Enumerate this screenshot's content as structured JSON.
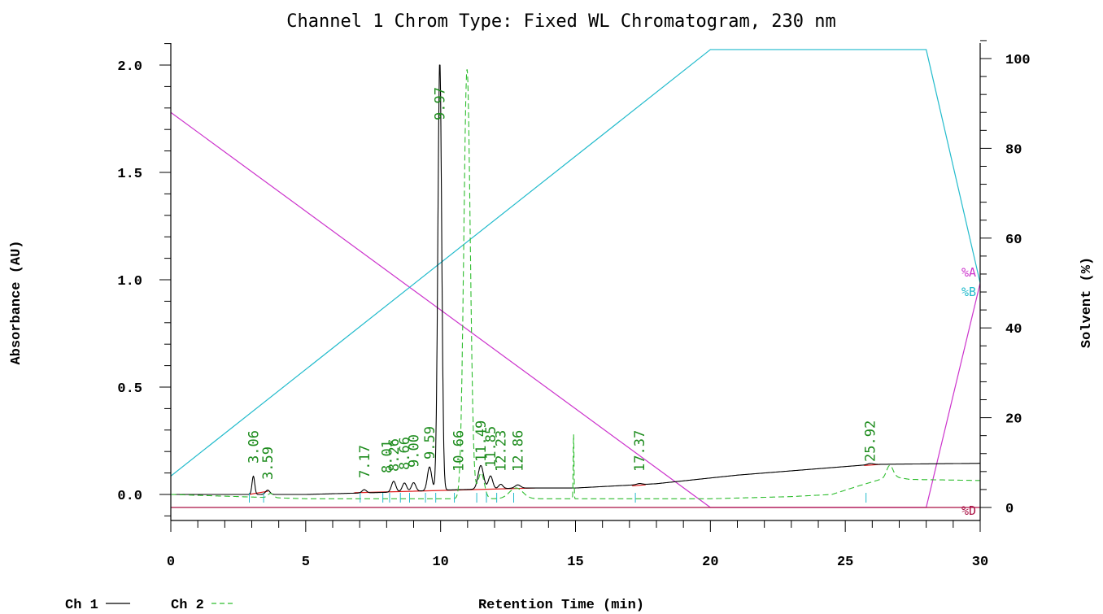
{
  "chart_data": {
    "type": "line",
    "title": "Channel 1 Chrom Type: Fixed WL Chromatogram, 230 nm",
    "xlabel": "Retention Time (min)",
    "ylabel": "Absorbance (AU)",
    "y2label": "Solvent (%)",
    "xlim": [
      0,
      30
    ],
    "ylim": [
      -0.12,
      2.1
    ],
    "y2lim": [
      0,
      100
    ],
    "x_ticks": [
      0,
      5,
      10,
      15,
      20,
      25,
      30
    ],
    "x_tick_labels": [
      "0",
      "5",
      "10",
      "15",
      "20",
      "25",
      "30"
    ],
    "y_ticks": [
      0.0,
      0.5,
      1.0,
      1.5,
      2.0
    ],
    "y_tick_labels": [
      "0.0",
      "0.5",
      "1.0",
      "1.5",
      "2.0"
    ],
    "y2_ticks": [
      0,
      20,
      40,
      60,
      80,
      100
    ],
    "y2_tick_labels": [
      "0",
      "20",
      "40",
      "60",
      "80",
      "100"
    ],
    "legend": [
      {
        "label": "Ch 1",
        "color": "#000000",
        "dash": "solid"
      },
      {
        "label": "Ch 2",
        "color": "#2ebd2e",
        "dash": "dashed"
      }
    ],
    "solvent_labels": [
      {
        "label": "%A",
        "color": "#cc33cc"
      },
      {
        "label": "%B",
        "color": "#22bbcc"
      },
      {
        "label": "%D",
        "color": "#aa1144"
      }
    ],
    "peak_labels": [
      "3.06",
      "3.59",
      "7.17",
      "8.01",
      "8.26",
      "8.66",
      "9.00",
      "9.59",
      "9.97",
      "10.66",
      "11.49",
      "11.85",
      "12.23",
      "12.86",
      "17.37",
      "25.92"
    ],
    "peak_times": [
      3.06,
      3.59,
      7.17,
      8.01,
      8.26,
      8.66,
      9.0,
      9.59,
      9.97,
      10.66,
      11.49,
      11.85,
      12.23,
      12.86,
      17.37,
      25.92
    ],
    "series": [
      {
        "name": "Ch 1",
        "color": "#000000",
        "baseline": [
          [
            0,
            0.0
          ],
          [
            5,
            0.0
          ],
          [
            8,
            0.01
          ],
          [
            10,
            0.02
          ],
          [
            13,
            0.03
          ],
          [
            15,
            0.03
          ],
          [
            18,
            0.05
          ],
          [
            21,
            0.09
          ],
          [
            24,
            0.12
          ],
          [
            26,
            0.14
          ],
          [
            30,
            0.145
          ]
        ],
        "peaks": [
          {
            "t": 3.06,
            "h": 0.085,
            "w": 0.05
          },
          {
            "t": 3.59,
            "h": 0.02,
            "w": 0.08
          },
          {
            "t": 7.17,
            "h": 0.015,
            "w": 0.08
          },
          {
            "t": 8.26,
            "h": 0.05,
            "w": 0.08
          },
          {
            "t": 8.66,
            "h": 0.04,
            "w": 0.08
          },
          {
            "t": 9.0,
            "h": 0.04,
            "w": 0.08
          },
          {
            "t": 9.59,
            "h": 0.11,
            "w": 0.08
          },
          {
            "t": 9.97,
            "h": 2.0,
            "w": 0.07
          },
          {
            "t": 11.49,
            "h": 0.11,
            "w": 0.1
          },
          {
            "t": 11.85,
            "h": 0.06,
            "w": 0.08
          },
          {
            "t": 12.23,
            "h": 0.02,
            "w": 0.08
          },
          {
            "t": 12.86,
            "h": 0.015,
            "w": 0.1
          },
          {
            "t": 17.37,
            "h": 0.005,
            "w": 0.1
          },
          {
            "t": 25.92,
            "h": 0.005,
            "w": 0.1
          }
        ]
      },
      {
        "name": "Ch 2",
        "color": "#2ebd2e",
        "baseline": [
          [
            0,
            0.0
          ],
          [
            5,
            -0.02
          ],
          [
            10,
            -0.02
          ],
          [
            15,
            -0.02
          ],
          [
            20,
            -0.02
          ],
          [
            23,
            -0.01
          ],
          [
            24.5,
            0.0
          ],
          [
            25.5,
            0.04
          ],
          [
            26.3,
            0.07
          ],
          [
            26.9,
            0.08
          ],
          [
            27.4,
            0.07
          ],
          [
            30,
            0.065
          ]
        ],
        "peaks": [
          {
            "t": 3.7,
            "h": 0.02,
            "w": 0.1
          },
          {
            "t": 10.98,
            "h": 2.0,
            "w": 0.12
          },
          {
            "t": 11.5,
            "h": 0.12,
            "w": 0.12
          },
          {
            "t": 12.8,
            "h": 0.05,
            "w": 0.25
          },
          {
            "t": 14.93,
            "h": 0.3,
            "w": 0.015
          },
          {
            "t": 26.65,
            "h": 0.06,
            "w": 0.12
          }
        ]
      }
    ],
    "gradient": [
      {
        "name": "%A",
        "color": "#cc33cc",
        "points": [
          [
            0,
            88
          ],
          [
            20,
            0
          ],
          [
            28,
            0
          ],
          [
            30,
            50
          ]
        ]
      },
      {
        "name": "%B",
        "color": "#22bbcc",
        "points": [
          [
            0,
            7
          ],
          [
            20,
            102
          ],
          [
            28,
            102
          ],
          [
            30,
            50
          ]
        ]
      },
      {
        "name": "%D",
        "color": "#aa1144",
        "points": [
          [
            0,
            0
          ],
          [
            30,
            0
          ]
        ]
      }
    ]
  }
}
